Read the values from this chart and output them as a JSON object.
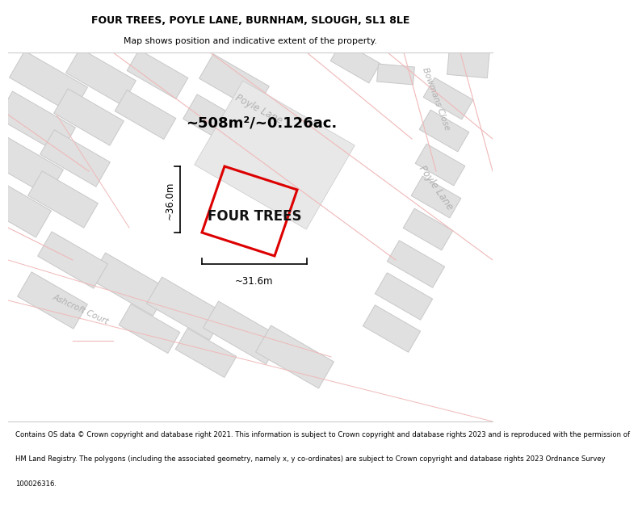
{
  "title_line1": "FOUR TREES, POYLE LANE, BURNHAM, SLOUGH, SL1 8LE",
  "title_line2": "Map shows position and indicative extent of the property.",
  "area_text": "~508m²/~0.126ac.",
  "property_label": "FOUR TREES",
  "dim_horizontal": "~31.6m",
  "dim_vertical": "~36.0m",
  "road_label_poyle_upper": "Poyle Lane",
  "road_label_poyle_lower": "Poyle Lane",
  "road_label_bowmans": "Bowmans Close",
  "road_label_ashcroft": "Ashcroft Court",
  "footer_lines": [
    "Contains OS data © Crown copyright and database right 2021. This information is subject to Crown copyright and database rights 2023 and is reproduced with the permission of",
    "HM Land Registry. The polygons (including the associated geometry, namely x, y co-ordinates) are subject to Crown copyright and database rights 2023 Ordnance Survey",
    "100026316."
  ],
  "map_bg": "#f0f0f0",
  "road_white": "#ffffff",
  "road_line": "#f0b8b8",
  "building_fill": "#e0e0e0",
  "building_edge": "#c8c8c8",
  "property_edge": "#dd0000",
  "text_dark": "#000000",
  "road_text": "#b0b0b0",
  "title_bg": "#ffffff",
  "footer_bg": "#ffffff"
}
